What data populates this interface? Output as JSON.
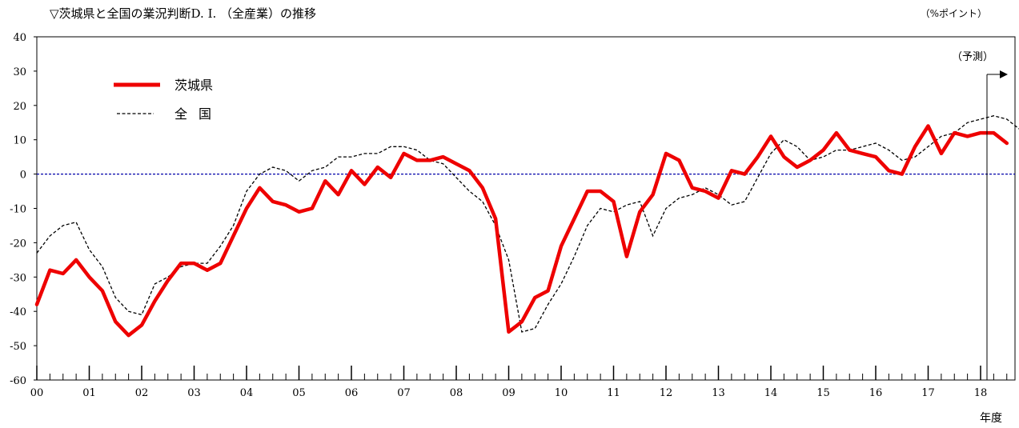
{
  "chart_data": {
    "type": "line",
    "title": "▽茨城県と全国の業況判断D. I. （全産業）の推移",
    "unit_label": "（%ポイント）",
    "xlabel": "年度",
    "ylabel": "",
    "ylim": [
      -60,
      40
    ],
    "y_ticks": [
      40,
      30,
      20,
      10,
      0,
      -10,
      -20,
      -30,
      -40,
      -50,
      -60
    ],
    "x_tick_labels": [
      "00",
      "01",
      "02",
      "03",
      "04",
      "05",
      "06",
      "07",
      "08",
      "09",
      "10",
      "11",
      "12",
      "13",
      "14",
      "15",
      "16",
      "17",
      "18"
    ],
    "x_unit": "quarter (4 per fiscal year, starting 00)",
    "forecast_label": "（予測）",
    "grid": false,
    "zero_line": true,
    "legend": "top-left",
    "colors": {
      "ibaraki": "#ee0000",
      "national": "#000000",
      "zero_line": "#0000aa"
    },
    "series": [
      {
        "name": "茨城県",
        "style": "solid-thick",
        "values": [
          -38,
          -28,
          -29,
          -25,
          -30,
          -34,
          -43,
          -47,
          -44,
          -37,
          -31,
          -26,
          -26,
          -28,
          -26,
          -18,
          -10,
          -4,
          -8,
          -9,
          -11,
          -10,
          -2,
          -6,
          1,
          -3,
          2,
          -1,
          6,
          4,
          4,
          5,
          3,
          1,
          -4,
          -13,
          -46,
          -43,
          -36,
          -34,
          -21,
          -13,
          -5,
          -5,
          -8,
          -24,
          -11,
          -6,
          6,
          4,
          -4,
          -5,
          -7,
          1,
          0,
          5,
          11,
          5,
          2,
          4,
          7,
          12,
          7,
          6,
          5,
          1,
          0,
          8,
          14,
          6,
          12,
          11,
          12,
          12,
          9
        ]
      },
      {
        "name": "全国",
        "style": "dashed",
        "values": [
          -23,
          -18,
          -15,
          -14,
          -22,
          -27,
          -36,
          -40,
          -41,
          -32,
          -30,
          -27,
          -26,
          -26,
          -21,
          -15,
          -5,
          0,
          2,
          1,
          -2,
          1,
          2,
          5,
          5,
          6,
          6,
          8,
          8,
          7,
          4,
          3,
          -1,
          -5,
          -8,
          -15,
          -25,
          -46,
          -45,
          -38,
          -32,
          -24,
          -15,
          -10,
          -11,
          -9,
          -8,
          -18,
          -10,
          -7,
          -6,
          -4,
          -6,
          -9,
          -8,
          -1,
          6,
          10,
          8,
          4,
          5,
          7,
          7,
          8,
          9,
          7,
          4,
          5,
          8,
          11,
          12,
          15,
          16,
          17,
          16,
          13
        ]
      }
    ]
  }
}
